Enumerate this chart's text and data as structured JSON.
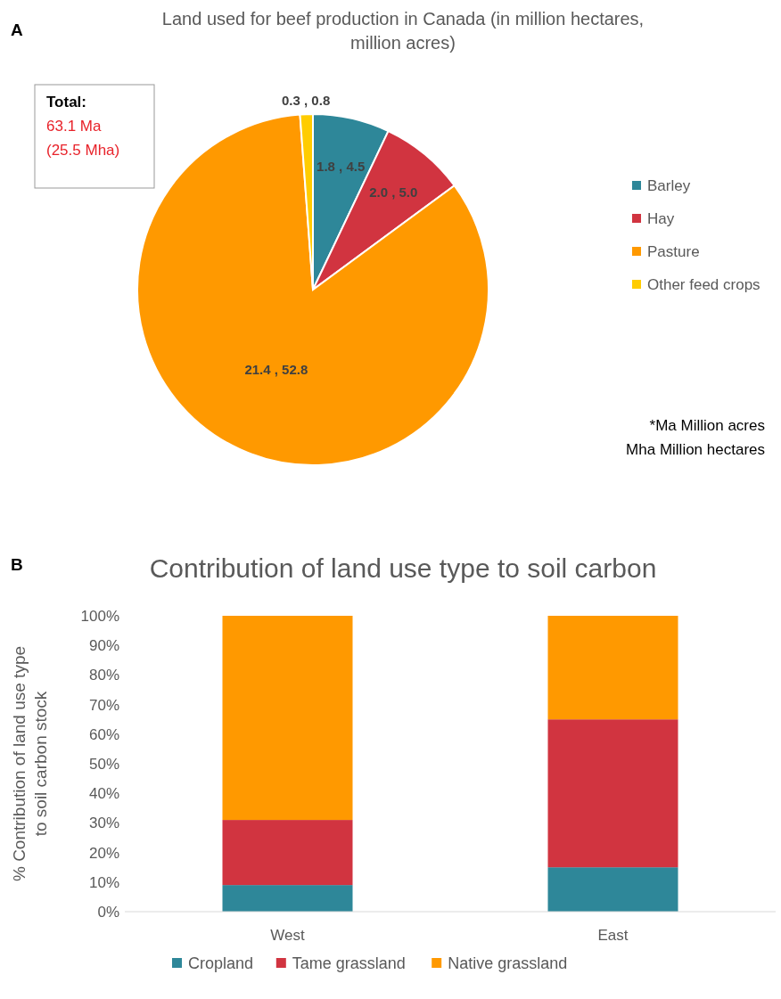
{
  "chart_data": [
    {
      "type": "pie",
      "title": "Land used for beef production in Canada (in million hectares, million acres)",
      "categories": [
        "Barley",
        "Hay",
        "Pasture",
        "Other feed crops"
      ],
      "values": [
        1.8,
        2.0,
        21.4,
        0.3
      ],
      "colors": [
        "#2e8799",
        "#d13440",
        "#ff9900",
        "#ffcc00"
      ],
      "value_labels": [
        "1.8 , 4.5",
        "2.0 , 5.0",
        "21.4 , 52.8",
        "0.3 , 0.8"
      ],
      "legend": "right",
      "annotations": [
        "A",
        "Total:",
        "63.1 Ma",
        "(25.5 Mha)",
        "*Ma Million acres",
        "Mha Million hectares"
      ]
    },
    {
      "type": "bar",
      "title": "Contribution of land use type to soil carbon",
      "ylabel": "% Contribution of land use type to soil carbon stock",
      "categories": [
        "West",
        "East"
      ],
      "stacked": true,
      "series": [
        {
          "name": "Cropland",
          "color": "#2e8799",
          "values": [
            9,
            15
          ]
        },
        {
          "name": "Tame grassland",
          "color": "#d13440",
          "values": [
            22,
            50
          ]
        },
        {
          "name": "Native grassland",
          "color": "#ff9900",
          "values": [
            69,
            35
          ]
        }
      ],
      "ylim": [
        0,
        100
      ],
      "yticks": [
        {
          "value": 0,
          "label": "0%"
        },
        {
          "value": 10,
          "label": "10%"
        },
        {
          "value": 20,
          "label": "20%"
        },
        {
          "value": 30,
          "label": "30%"
        },
        {
          "value": 40,
          "label": "40%"
        },
        {
          "value": 50,
          "label": "50%"
        },
        {
          "value": 60,
          "label": "60%"
        },
        {
          "value": 70,
          "label": "70%"
        },
        {
          "value": 80,
          "label": "80%"
        },
        {
          "value": 90,
          "label": "90%"
        },
        {
          "value": 100,
          "label": "100%"
        }
      ],
      "legend": "bottom",
      "annotations": [
        "B"
      ]
    }
  ]
}
